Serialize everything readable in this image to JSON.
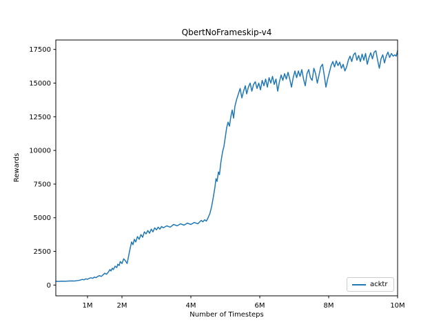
{
  "figure": {
    "background": "#ffffff"
  },
  "chart_data": {
    "type": "line",
    "title": "QbertNoFrameskip-v4",
    "xlabel": "Number of Timesteps",
    "ylabel": "Rewards",
    "grid": false,
    "xlim_millions": [
      0.08,
      10.0
    ],
    "ylim": [
      -800,
      18200
    ],
    "x_ticks": [
      {
        "value": 1,
        "label": "1M"
      },
      {
        "value": 2,
        "label": "2M"
      },
      {
        "value": 4,
        "label": "4M"
      },
      {
        "value": 6,
        "label": "6M"
      },
      {
        "value": 8,
        "label": "8M"
      },
      {
        "value": 10,
        "label": "10M"
      }
    ],
    "y_ticks": [
      {
        "value": 0,
        "label": "0"
      },
      {
        "value": 2500,
        "label": "2500"
      },
      {
        "value": 5000,
        "label": "5000"
      },
      {
        "value": 7500,
        "label": "7500"
      },
      {
        "value": 10000,
        "label": "10000"
      },
      {
        "value": 12500,
        "label": "12500"
      },
      {
        "value": 15000,
        "label": "15000"
      },
      {
        "value": 17500,
        "label": "17500"
      }
    ],
    "legend": {
      "position": "lower right",
      "entries": [
        "acktr"
      ]
    },
    "series": [
      {
        "name": "acktr",
        "color": "#1f77b4",
        "line_width": 1.5,
        "x_millions": [
          0.08,
          0.15,
          0.25,
          0.35,
          0.45,
          0.55,
          0.62,
          0.7,
          0.78,
          0.85,
          0.9,
          0.95,
          1.0,
          1.05,
          1.1,
          1.15,
          1.2,
          1.25,
          1.3,
          1.35,
          1.4,
          1.45,
          1.5,
          1.55,
          1.6,
          1.65,
          1.68,
          1.72,
          1.75,
          1.8,
          1.85,
          1.88,
          1.92,
          1.95,
          2.0,
          2.05,
          2.1,
          2.15,
          2.2,
          2.24,
          2.28,
          2.32,
          2.36,
          2.4,
          2.45,
          2.5,
          2.55,
          2.6,
          2.65,
          2.7,
          2.75,
          2.8,
          2.85,
          2.9,
          2.95,
          3.0,
          3.05,
          3.1,
          3.15,
          3.2,
          3.3,
          3.4,
          3.5,
          3.6,
          3.7,
          3.8,
          3.9,
          4.0,
          4.1,
          4.2,
          4.3,
          4.35,
          4.4,
          4.45,
          4.5,
          4.55,
          4.6,
          4.65,
          4.7,
          4.73,
          4.76,
          4.8,
          4.83,
          4.87,
          4.92,
          4.96,
          5.0,
          5.04,
          5.08,
          5.12,
          5.16,
          5.2,
          5.24,
          5.28,
          5.33,
          5.38,
          5.43,
          5.48,
          5.53,
          5.58,
          5.62,
          5.67,
          5.72,
          5.77,
          5.82,
          5.87,
          5.92,
          5.97,
          6.02,
          6.07,
          6.12,
          6.17,
          6.22,
          6.27,
          6.32,
          6.37,
          6.42,
          6.47,
          6.52,
          6.57,
          6.62,
          6.67,
          6.72,
          6.77,
          6.82,
          6.87,
          6.92,
          6.97,
          7.02,
          7.07,
          7.12,
          7.17,
          7.22,
          7.27,
          7.32,
          7.37,
          7.42,
          7.47,
          7.52,
          7.57,
          7.62,
          7.67,
          7.72,
          7.77,
          7.82,
          7.87,
          7.92,
          7.97,
          8.02,
          8.07,
          8.12,
          8.17,
          8.22,
          8.27,
          8.32,
          8.37,
          8.42,
          8.47,
          8.52,
          8.57,
          8.62,
          8.67,
          8.72,
          8.77,
          8.82,
          8.87,
          8.92,
          8.97,
          9.02,
          9.07,
          9.12,
          9.17,
          9.22,
          9.27,
          9.32,
          9.37,
          9.42,
          9.47,
          9.52,
          9.57,
          9.62,
          9.67,
          9.72,
          9.77,
          9.82,
          9.87,
          9.92,
          9.96,
          10.0
        ],
        "y": [
          280,
          270,
          290,
          280,
          300,
          310,
          300,
          330,
          360,
          420,
          390,
          460,
          430,
          500,
          540,
          500,
          590,
          550,
          650,
          700,
          640,
          760,
          880,
          800,
          950,
          1150,
          1050,
          1250,
          1150,
          1400,
          1300,
          1550,
          1450,
          1750,
          1600,
          1950,
          1800,
          1600,
          2250,
          2750,
          3200,
          3000,
          3400,
          3200,
          3600,
          3400,
          3750,
          3550,
          3950,
          3800,
          4050,
          3850,
          4150,
          3950,
          4250,
          4100,
          4300,
          4150,
          4350,
          4250,
          4400,
          4300,
          4500,
          4400,
          4550,
          4450,
          4600,
          4500,
          4650,
          4550,
          4800,
          4700,
          4850,
          4750,
          5000,
          5300,
          5800,
          6500,
          7300,
          7900,
          7700,
          8400,
          8200,
          9100,
          9900,
          10300,
          11000,
          11700,
          12100,
          11800,
          12500,
          13000,
          12400,
          13300,
          13800,
          14200,
          14600,
          13900,
          14400,
          14800,
          14200,
          14700,
          15000,
          14400,
          14900,
          15100,
          14600,
          15000,
          14500,
          15200,
          14800,
          15300,
          14700,
          15400,
          15000,
          15500,
          14900,
          15300,
          14400,
          15100,
          15600,
          15200,
          15700,
          15300,
          15800,
          15300,
          14700,
          15400,
          15900,
          15400,
          15900,
          15500,
          16000,
          15300,
          14800,
          15700,
          16000,
          15400,
          15200,
          16100,
          15700,
          15000,
          15600,
          16200,
          16400,
          15600,
          14700,
          15300,
          15800,
          16300,
          16600,
          16200,
          16650,
          16300,
          16550,
          16100,
          16400,
          15900,
          16200,
          16700,
          17000,
          16600,
          17100,
          17250,
          16700,
          17050,
          16600,
          17150,
          16700,
          17200,
          16400,
          16900,
          17250,
          16800,
          17300,
          17400,
          16700,
          16100,
          16800,
          17100,
          16500,
          17000,
          17300,
          16900,
          17200,
          17000,
          17100,
          17000,
          17400
        ]
      }
    ]
  }
}
